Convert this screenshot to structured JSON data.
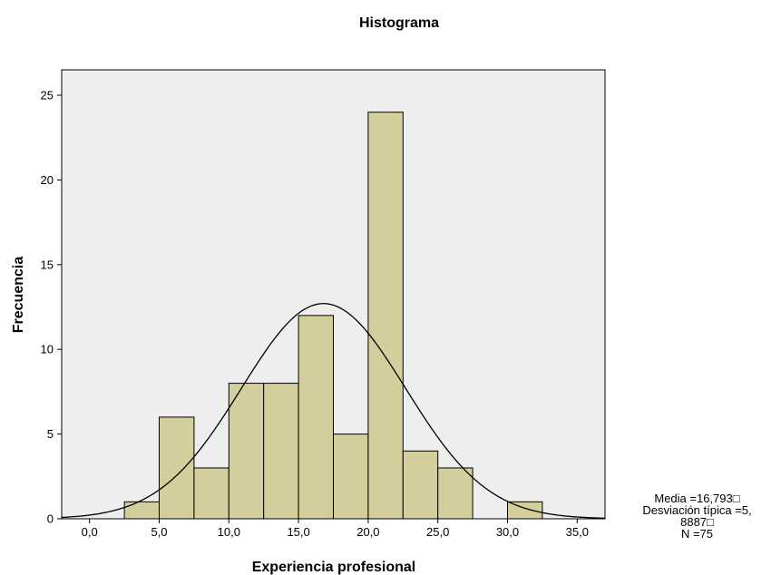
{
  "chart_data": {
    "type": "histogram",
    "title": "Histograma",
    "xlabel": "Experiencia profesional",
    "ylabel": "Frecuencia",
    "xlim": [
      -2.0,
      37.0
    ],
    "ylim": [
      0,
      26.5
    ],
    "x_ticks": [
      0,
      5,
      10,
      15,
      20,
      25,
      30,
      35
    ],
    "x_tick_labels": [
      "0,0",
      "5,0",
      "10,0",
      "15,0",
      "20,0",
      "25,0",
      "30,0",
      "35,0"
    ],
    "y_ticks": [
      0,
      5,
      10,
      15,
      20,
      25
    ],
    "y_tick_labels": [
      "0",
      "5",
      "10",
      "15",
      "20",
      "25"
    ],
    "bin_width": 2.5,
    "bins": [
      {
        "start": 2.5,
        "end": 5.0,
        "count": 1
      },
      {
        "start": 5.0,
        "end": 7.5,
        "count": 6
      },
      {
        "start": 7.5,
        "end": 10.0,
        "count": 3
      },
      {
        "start": 10.0,
        "end": 12.5,
        "count": 8
      },
      {
        "start": 12.5,
        "end": 15.0,
        "count": 8
      },
      {
        "start": 15.0,
        "end": 17.5,
        "count": 12
      },
      {
        "start": 17.5,
        "end": 20.0,
        "count": 5
      },
      {
        "start": 20.0,
        "end": 22.5,
        "count": 24
      },
      {
        "start": 22.5,
        "end": 25.0,
        "count": 4
      },
      {
        "start": 25.0,
        "end": 27.5,
        "count": 3
      },
      {
        "start": 30.0,
        "end": 32.5,
        "count": 1
      }
    ],
    "normal_curve": {
      "mean": 16.793,
      "sd": 5.8887,
      "n": 75
    },
    "grid": false,
    "colors": {
      "bar_fill": "#d3ce9c",
      "bar_stroke": "#000000",
      "plot_background": "#eeeeee",
      "curve": "#000000"
    },
    "stats_labels": [
      "Media =16,793□",
      "Desviación típica =5,",
      "8887□",
      "N =75"
    ]
  }
}
